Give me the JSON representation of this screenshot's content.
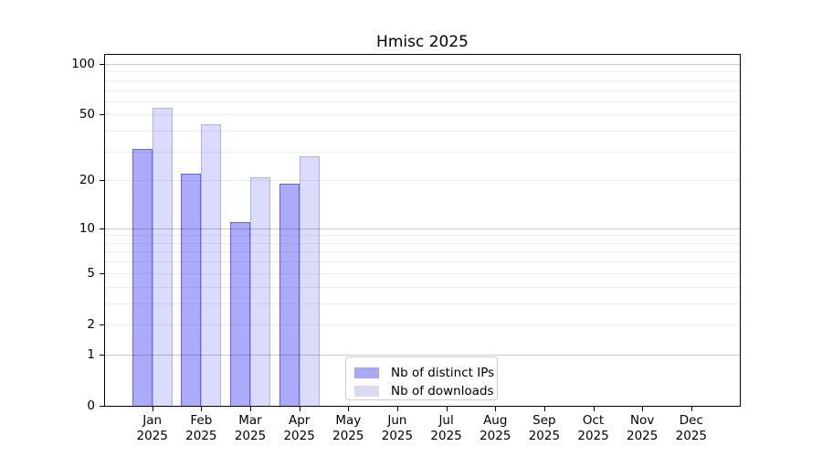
{
  "title": "Hmisc 2025",
  "y_axis": {
    "tick_values": [
      100,
      50,
      20,
      10,
      5,
      2,
      1,
      0
    ]
  },
  "x_axis": {
    "months": [
      "Jan",
      "Feb",
      "Mar",
      "Apr",
      "May",
      "Jun",
      "Jul",
      "Aug",
      "Sep",
      "Oct",
      "Nov",
      "Dec"
    ],
    "year": "2025"
  },
  "legend": {
    "items": [
      {
        "label": "Nb of distinct IPs"
      },
      {
        "label": "Nb of downloads"
      }
    ]
  },
  "colors": {
    "ips_fill": "rgba(0,0,240,0.33)",
    "ips_edge": "rgba(0,0,200,0.42)",
    "downloads_fill": "rgba(0,0,238,0.14)",
    "downloads_edge": "rgba(0,0,200,0.20)",
    "ips_swatch": "#a9a9f3",
    "downloads_swatch": "#d9d9f6",
    "grid_major": "#c9c9c9",
    "grid_minor": "#ededed",
    "axis": "#000000",
    "legend_border": "#cccccc",
    "text": "#000000",
    "background": "#ffffff"
  },
  "chart_data": {
    "type": "bar",
    "title": "Hmisc 2025",
    "categories": [
      "Jan 2025",
      "Feb 2025",
      "Mar 2025",
      "Apr 2025",
      "May 2025",
      "Jun 2025",
      "Jul 2025",
      "Aug 2025",
      "Sep 2025",
      "Oct 2025",
      "Nov 2025",
      "Dec 2025"
    ],
    "series": [
      {
        "name": "Nb of distinct IPs",
        "values": [
          31,
          22,
          11,
          19,
          0,
          0,
          0,
          0,
          0,
          0,
          0,
          0
        ]
      },
      {
        "name": "Nb of downloads",
        "values": [
          55,
          44,
          21,
          28,
          0,
          0,
          0,
          0,
          0,
          0,
          0,
          0
        ]
      }
    ],
    "xlabel": "",
    "ylabel": "",
    "yscale": "log1p",
    "ylim": [
      0,
      115
    ],
    "y_ticks": [
      0,
      1,
      2,
      5,
      10,
      20,
      50,
      100
    ],
    "y_gridlines_major": [
      1,
      10,
      100
    ],
    "y_gridlines_minor": [
      2,
      3,
      4,
      5,
      6,
      7,
      8,
      9,
      20,
      30,
      40,
      50,
      60,
      70,
      80,
      90
    ],
    "grid": "horizontal",
    "legend_position": "lower-center-inside"
  }
}
